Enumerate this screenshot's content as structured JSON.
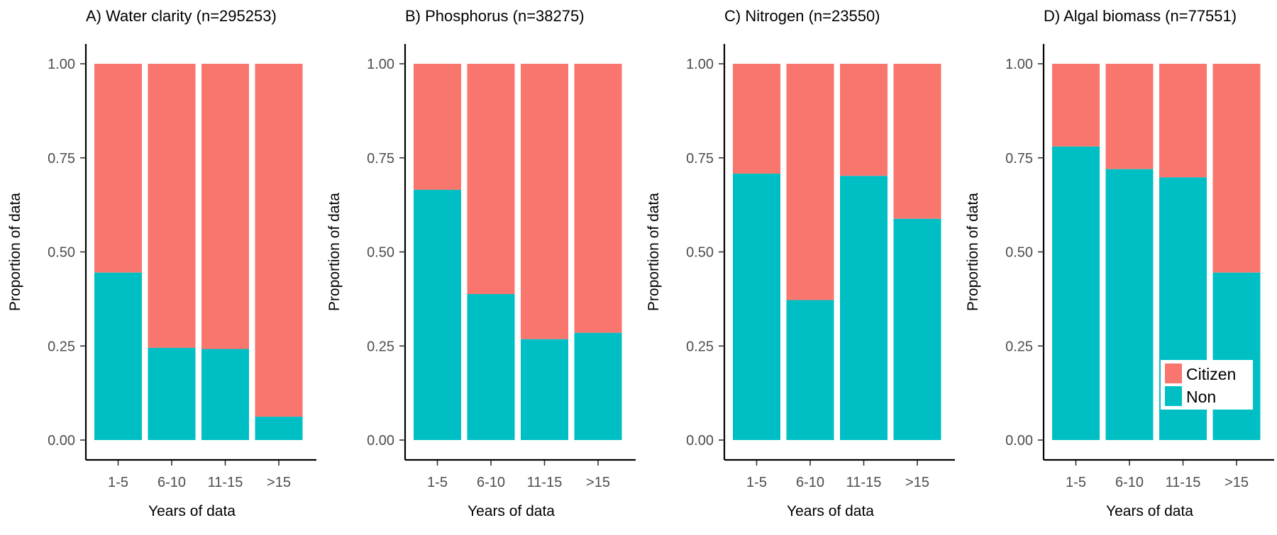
{
  "chart_data": [
    {
      "type": "bar",
      "stacked": true,
      "title": "A) Water clarity (n=295253)",
      "xlabel": "Years of data",
      "ylabel": "Proportion of data",
      "categories": [
        "1-5",
        "6-10",
        "11-15",
        ">15"
      ],
      "ylim": [
        0,
        1
      ],
      "yticks": [
        "0.00",
        "0.25",
        "0.50",
        "0.75",
        "1.00"
      ],
      "series": [
        {
          "name": "Non",
          "color": "#00BFC4",
          "values": [
            0.445,
            0.245,
            0.242,
            0.062
          ]
        },
        {
          "name": "Citizen",
          "color": "#F8766D",
          "values": [
            0.555,
            0.755,
            0.758,
            0.938
          ]
        }
      ]
    },
    {
      "type": "bar",
      "stacked": true,
      "title": "B) Phosphorus (n=38275)",
      "xlabel": "Years of data",
      "ylabel": "Proportion of data",
      "categories": [
        "1-5",
        "6-10",
        "11-15",
        ">15"
      ],
      "ylim": [
        0,
        1
      ],
      "yticks": [
        "0.00",
        "0.25",
        "0.50",
        "0.75",
        "1.00"
      ],
      "series": [
        {
          "name": "Non",
          "color": "#00BFC4",
          "values": [
            0.665,
            0.388,
            0.268,
            0.285
          ]
        },
        {
          "name": "Citizen",
          "color": "#F8766D",
          "values": [
            0.335,
            0.612,
            0.732,
            0.715
          ]
        }
      ]
    },
    {
      "type": "bar",
      "stacked": true,
      "title": "C) Nitrogen (n=23550)",
      "xlabel": "Years of data",
      "ylabel": "Proportion of data",
      "categories": [
        "1-5",
        "6-10",
        "11-15",
        ">15"
      ],
      "ylim": [
        0,
        1
      ],
      "yticks": [
        "0.00",
        "0.25",
        "0.50",
        "0.75",
        "1.00"
      ],
      "series": [
        {
          "name": "Non",
          "color": "#00BFC4",
          "values": [
            0.708,
            0.372,
            0.702,
            0.588
          ]
        },
        {
          "name": "Citizen",
          "color": "#F8766D",
          "values": [
            0.292,
            0.628,
            0.298,
            0.412
          ]
        }
      ]
    },
    {
      "type": "bar",
      "stacked": true,
      "title": "D) Algal biomass (n=77551)",
      "xlabel": "Years of data",
      "ylabel": "Proportion of data",
      "categories": [
        "1-5",
        "6-10",
        "11-15",
        ">15"
      ],
      "ylim": [
        0,
        1
      ],
      "yticks": [
        "0.00",
        "0.25",
        "0.50",
        "0.75",
        "1.00"
      ],
      "legend": {
        "placement": "bottom-right",
        "entries": [
          "Citizen",
          "Non"
        ]
      },
      "series": [
        {
          "name": "Non",
          "color": "#00BFC4",
          "values": [
            0.78,
            0.72,
            0.698,
            0.445
          ]
        },
        {
          "name": "Citizen",
          "color": "#F8766D",
          "values": [
            0.22,
            0.28,
            0.302,
            0.555
          ]
        }
      ]
    }
  ]
}
